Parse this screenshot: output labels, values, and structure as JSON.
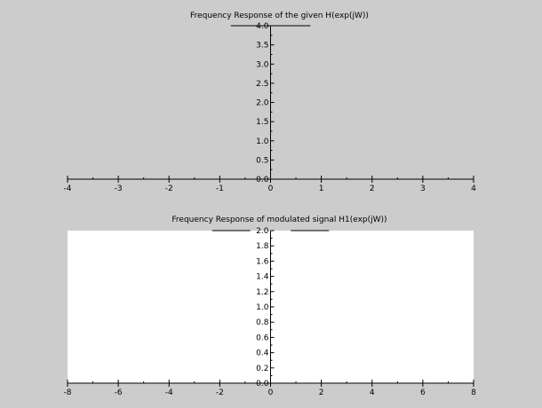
{
  "chart_data": [
    {
      "type": "line",
      "title": "Frequency Response of the given H(exp(jW))",
      "background": "#cccccc",
      "xlim": [
        -4,
        4
      ],
      "ylim": [
        0,
        4
      ],
      "x_ticks": [
        -4,
        -3,
        -2,
        -1,
        0,
        1,
        2,
        3,
        4
      ],
      "x_tick_labels": [
        "-4",
        "-3",
        "-2",
        "-1",
        "0",
        "1",
        "2",
        "3",
        "4"
      ],
      "y_ticks": [
        0,
        0.5,
        1,
        1.5,
        2,
        2.5,
        3,
        3.5,
        4
      ],
      "y_tick_labels": [
        "0.0",
        "0.5",
        "1.0",
        "1.5",
        "2.0",
        "2.5",
        "3.0",
        "3.5",
        "4.0"
      ],
      "grid": false,
      "series": [
        {
          "x": [
            -0.785,
            0.785
          ],
          "y": [
            4,
            4
          ],
          "color": "#000000"
        }
      ]
    },
    {
      "type": "line",
      "title": "Frequency Response of modulated signal H1(exp(jW))",
      "background": "#ffffff",
      "xlim": [
        -8,
        8
      ],
      "ylim": [
        0,
        2
      ],
      "x_ticks": [
        -8,
        -6,
        -4,
        -2,
        0,
        2,
        4,
        6,
        8
      ],
      "x_tick_labels": [
        "-8",
        "-6",
        "-4",
        "-2",
        "0",
        "2",
        "4",
        "6",
        "8"
      ],
      "y_ticks": [
        0,
        0.2,
        0.4,
        0.6,
        0.8,
        1,
        1.2,
        1.4,
        1.6,
        1.8,
        2
      ],
      "y_tick_labels": [
        "0.0",
        "0.2",
        "0.4",
        "0.6",
        "0.8",
        "1.0",
        "1.2",
        "1.4",
        "1.6",
        "1.8",
        "2.0"
      ],
      "grid": false,
      "series": [
        {
          "x": [
            -2.3,
            -0.8
          ],
          "y": [
            2,
            2
          ],
          "color": "#000000"
        },
        {
          "x": [
            0.8,
            2.3
          ],
          "y": [
            2,
            2
          ],
          "color": "#000000"
        }
      ]
    }
  ]
}
